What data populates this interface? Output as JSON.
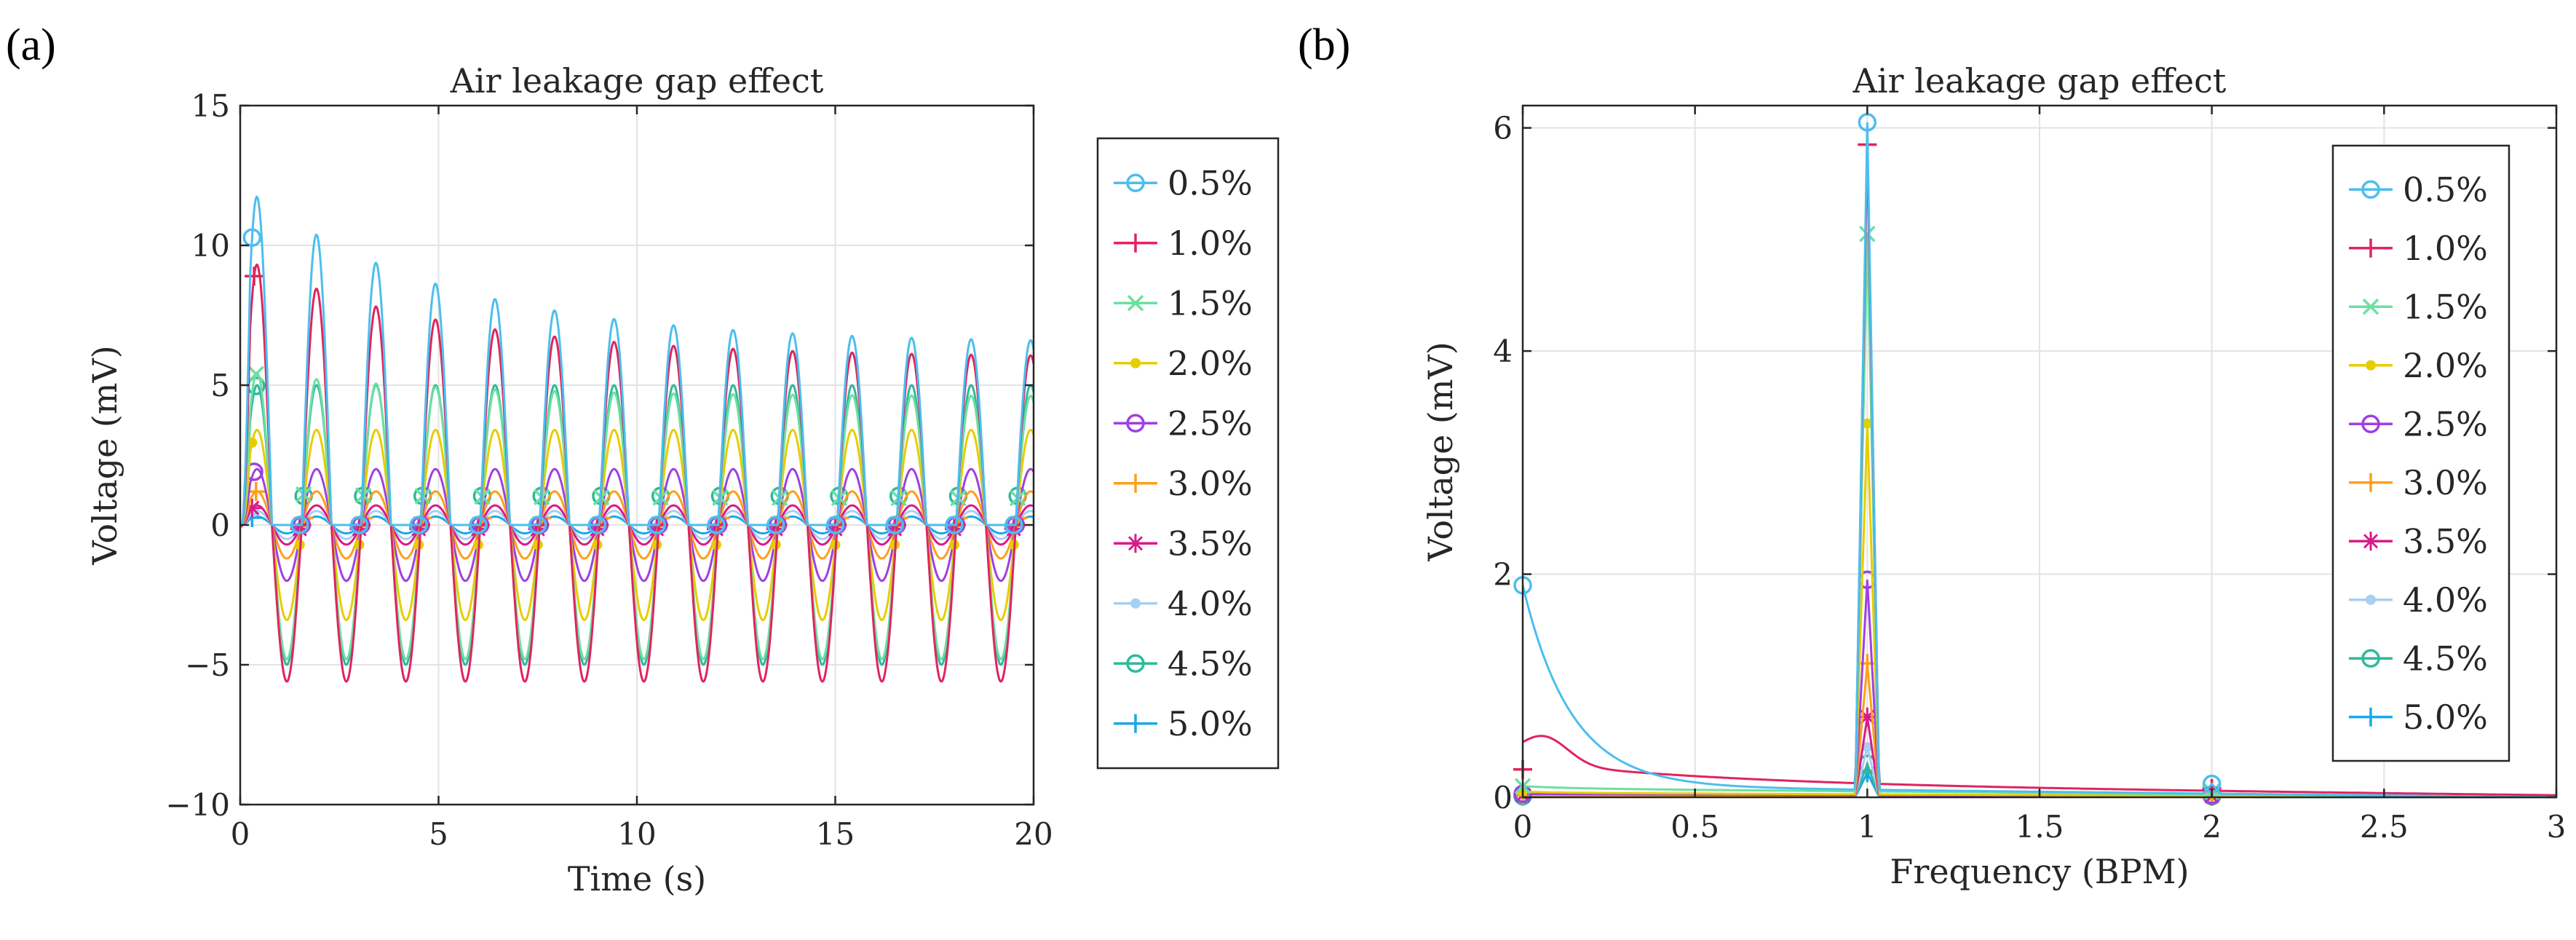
{
  "figure": {
    "panel_labels": [
      "(a)",
      "(b)"
    ]
  },
  "chart_data": [
    {
      "type": "line",
      "panel": "(a)",
      "title": "Air leakage gap effect",
      "xlabel": "Time (s)",
      "ylabel": "Voltage (mV)",
      "xlim": [
        0,
        20
      ],
      "ylim": [
        -10,
        15
      ],
      "xticks": [
        0,
        5,
        10,
        15,
        20
      ],
      "yticks": [
        -10,
        -5,
        0,
        5,
        10,
        15
      ],
      "xtick_labels": [
        "0",
        "5",
        "10",
        "15",
        "20"
      ],
      "ytick_labels": [
        "−10",
        "−5",
        "0",
        "5",
        "10",
        "15"
      ],
      "grid": true,
      "legend_position": "outside-right",
      "period_s": 1.5,
      "series": [
        {
          "name": "0.5%",
          "color": "#4DBEEE",
          "marker": "o",
          "peak_start": 12.2,
          "peak_end": 6.5,
          "trough": 0.0
        },
        {
          "name": "1.0%",
          "color": "#E0245E",
          "marker": "+",
          "peak_start": 9.6,
          "peak_end": 6.0,
          "trough": -5.6
        },
        {
          "name": "1.5%",
          "color": "#6CE0A0",
          "marker": "x",
          "peak_start": 5.5,
          "peak_end": 4.6,
          "trough": -4.8
        },
        {
          "name": "2.0%",
          "color": "#E8CC00",
          "marker": "dot",
          "peak_start": 3.4,
          "peak_end": 3.4,
          "trough": -3.4
        },
        {
          "name": "2.5%",
          "color": "#A040E0",
          "marker": "o",
          "peak_start": 2.0,
          "peak_end": 2.0,
          "trough": -2.0
        },
        {
          "name": "3.0%",
          "color": "#FF9F1A",
          "marker": "+",
          "peak_start": 1.2,
          "peak_end": 1.2,
          "trough": -1.2
        },
        {
          "name": "3.5%",
          "color": "#D81B8A",
          "marker": "asterisk",
          "peak_start": 0.7,
          "peak_end": 0.7,
          "trough": -0.7
        },
        {
          "name": "4.0%",
          "color": "#A6CFF2",
          "marker": "dot",
          "peak_start": 0.5,
          "peak_end": 0.5,
          "trough": -0.5
        },
        {
          "name": "4.5%",
          "color": "#2FB99A",
          "marker": "o",
          "peak_start": 5.0,
          "peak_end": 5.0,
          "trough": -5.0
        },
        {
          "name": "5.0%",
          "color": "#1CA8E8",
          "marker": "+",
          "peak_start": 0.3,
          "peak_end": 0.3,
          "trough": -0.3
        }
      ]
    },
    {
      "type": "line",
      "panel": "(b)",
      "title": "Air leakage gap effect",
      "xlabel": "Frequency (BPM)",
      "ylabel": "Voltage (mV)",
      "xlim": [
        0,
        3
      ],
      "ylim": [
        0,
        6.2
      ],
      "xticks": [
        0,
        0.5,
        1,
        1.5,
        2,
        2.5,
        3
      ],
      "yticks": [
        0,
        2,
        4,
        6
      ],
      "xtick_labels": [
        "0",
        "0.5",
        "1",
        "1.5",
        "2",
        "2.5",
        "3"
      ],
      "ytick_labels": [
        "0",
        "2",
        "4",
        "6"
      ],
      "grid": true,
      "legend_position": "top-right",
      "series": [
        {
          "name": "0.5%",
          "color": "#4DBEEE",
          "marker": "o",
          "dc": 1.9,
          "peak_1": 6.05,
          "peak_2": 0.12,
          "floor": 0.1
        },
        {
          "name": "1.0%",
          "color": "#E0245E",
          "marker": "+",
          "dc": 0.25,
          "peak_1": 5.85,
          "peak_2": 0.08,
          "floor": 0.12
        },
        {
          "name": "1.5%",
          "color": "#6CE0A0",
          "marker": "x",
          "dc": 0.1,
          "peak_1": 5.05,
          "peak_2": 0.05,
          "floor": 0.08
        },
        {
          "name": "2.0%",
          "color": "#E8CC00",
          "marker": "dot",
          "dc": 0.05,
          "peak_1": 3.35,
          "peak_2": 0.03,
          "floor": 0.04
        },
        {
          "name": "2.5%",
          "color": "#A040E0",
          "marker": "o",
          "dc": 0.03,
          "peak_1": 1.95,
          "peak_2": 0.02,
          "floor": 0.03
        },
        {
          "name": "3.0%",
          "color": "#FF9F1A",
          "marker": "+",
          "dc": 0.02,
          "peak_1": 1.2,
          "peak_2": 0.02,
          "floor": 0.02
        },
        {
          "name": "3.5%",
          "color": "#D81B8A",
          "marker": "asterisk",
          "dc": 0.02,
          "peak_1": 0.72,
          "peak_2": 0.01,
          "floor": 0.02
        },
        {
          "name": "4.0%",
          "color": "#A6CFF2",
          "marker": "dot",
          "dc": 0.01,
          "peak_1": 0.45,
          "peak_2": 0.01,
          "floor": 0.01
        },
        {
          "name": "4.5%",
          "color": "#2FB99A",
          "marker": "o",
          "dc": 0.01,
          "peak_1": 0.3,
          "peak_2": 0.01,
          "floor": 0.01
        },
        {
          "name": "5.0%",
          "color": "#1CA8E8",
          "marker": "+",
          "dc": 0.01,
          "peak_1": 0.22,
          "peak_2": 0.01,
          "floor": 0.01
        }
      ]
    }
  ]
}
